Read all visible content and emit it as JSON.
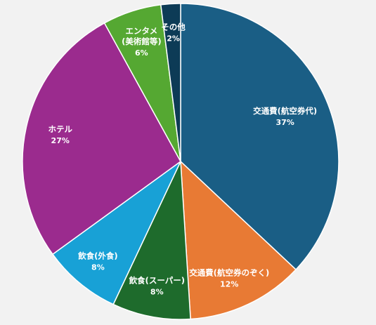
{
  "chart_data": {
    "type": "pie",
    "categories": [
      "交通費(航空券代)",
      "交通費(航空券のぞく)",
      "飲食(スーパー)",
      "飲食(外食)",
      "ホテル",
      "エンタメ\n(美術館等)",
      "その他"
    ],
    "values": [
      37,
      12,
      8,
      8,
      27,
      6,
      2
    ],
    "value_labels": [
      "37%",
      "12%",
      "8%",
      "8%",
      "27%",
      "6%",
      "2%"
    ],
    "colors": [
      "#1a5e85",
      "#e87a34",
      "#1e6b2c",
      "#18a1d6",
      "#9b2b8e",
      "#55a832",
      "#0d3b56"
    ],
    "title": "",
    "legend": "none"
  }
}
